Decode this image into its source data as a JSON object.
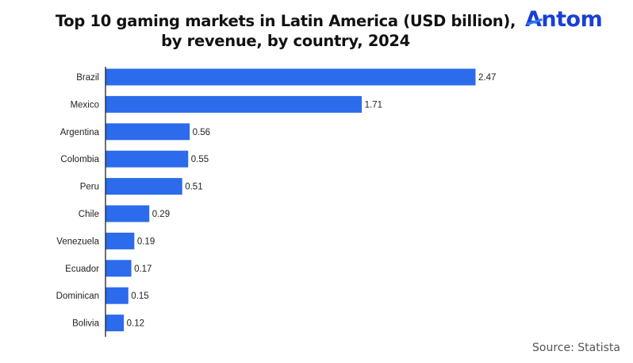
{
  "title_lines": [
    "Top 10 gaming markets in Latin America (USD billion),",
    "by revenue, by country, 2024"
  ],
  "logo": {
    "text_first": "A",
    "text_rest": "ntom",
    "color": "#1a3fd6"
  },
  "source": "Source: Statista",
  "chart_data": {
    "type": "bar",
    "orientation": "horizontal",
    "title": "Top 10 gaming markets in Latin America (USD billion), by revenue, by country, 2024",
    "xlabel": "",
    "ylabel": "",
    "categories": [
      "Brazil",
      "Mexico",
      "Argentina",
      "Colombia",
      "Peru",
      "Chile",
      "Venezuela",
      "Ecuador",
      "Dominican",
      "Bolivia"
    ],
    "values": [
      2.47,
      1.71,
      0.56,
      0.55,
      0.51,
      0.29,
      0.19,
      0.17,
      0.15,
      0.12
    ],
    "data_labels": [
      "2.47",
      "1.71",
      "0.56",
      "0.55",
      "0.51",
      "0.29",
      "0.19",
      "0.17",
      "0.15",
      "0.12"
    ],
    "units": "USD billion",
    "xlim": [
      0,
      2.47
    ],
    "grid": false,
    "legend": "none",
    "bar_color": "#2b6bec"
  }
}
